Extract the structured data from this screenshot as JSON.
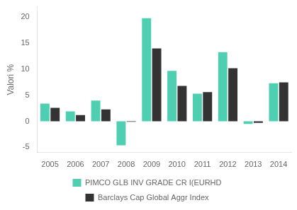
{
  "chart_data": {
    "type": "bar",
    "categories": [
      "2005",
      "2006",
      "2007",
      "2008",
      "2009",
      "2010",
      "2011",
      "2012",
      "2013",
      "2014"
    ],
    "series": [
      {
        "name": "PIMCO GLB INV GRADE CR I(EURHD",
        "color": "#4ECFB2",
        "values": [
          3.4,
          1.9,
          4.0,
          -4.6,
          19.8,
          9.7,
          5.3,
          13.3,
          -0.5,
          7.3
        ]
      },
      {
        "name": "Barclays Cap Global Aggr Index",
        "color": "#333333",
        "values": [
          2.6,
          1.2,
          2.3,
          -0.1,
          14.0,
          6.8,
          5.6,
          10.2,
          -0.3,
          7.5
        ]
      }
    ],
    "ylabel": "Valori %",
    "ylim": [
      -6,
      22
    ],
    "yticks": [
      -5,
      0,
      5,
      10,
      15,
      20
    ],
    "grid": false,
    "legend": "bottom"
  }
}
